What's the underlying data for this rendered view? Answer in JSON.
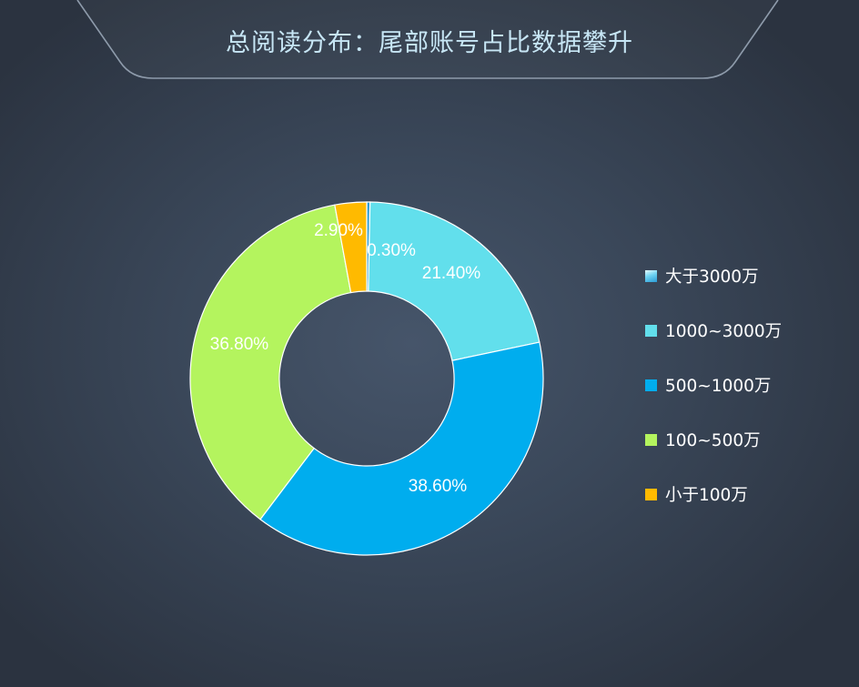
{
  "title": "总阅读分布：尾部账号占比数据攀升",
  "chart_data": {
    "type": "pie",
    "donut": true,
    "title": "总阅读分布：尾部账号占比数据攀升",
    "legend_position": "right",
    "slices": [
      {
        "name": "大于3000万",
        "value": 0.3,
        "label": "0.30%",
        "color": "#2a9bd6"
      },
      {
        "name": "1000~3000万",
        "value": 21.4,
        "label": "21.40%",
        "color": "#62dfec"
      },
      {
        "name": "500~1000万",
        "value": 38.6,
        "label": "38.60%",
        "color": "#00adee"
      },
      {
        "name": "100~500万",
        "value": 36.8,
        "label": "36.80%",
        "color": "#b4f45e"
      },
      {
        "name": "小于100万",
        "value": 2.9,
        "label": "2.90%",
        "color": "#ffba00"
      }
    ]
  }
}
